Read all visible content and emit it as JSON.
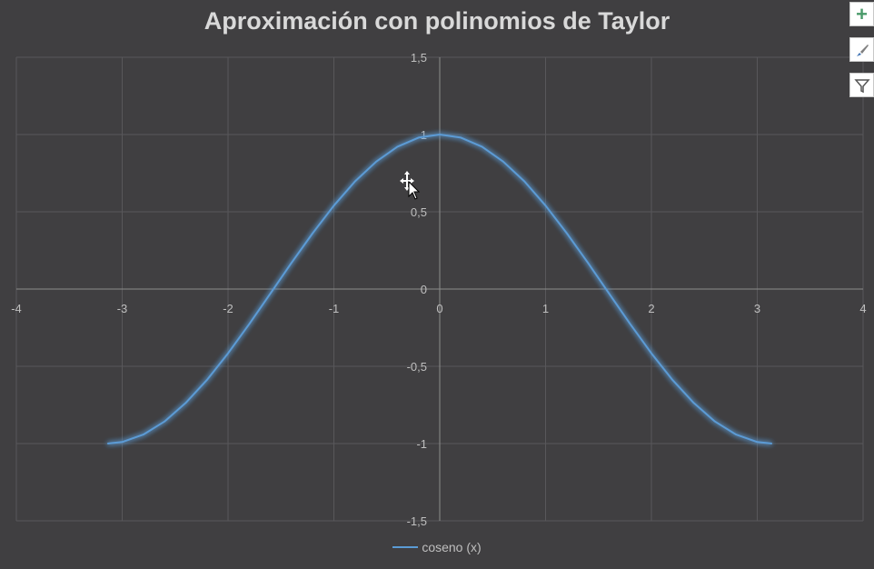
{
  "chart_data": {
    "type": "line",
    "title": "Aproximación con polinomios de Taylor",
    "xlim": [
      -4,
      4
    ],
    "ylim": [
      -1.5,
      1.5
    ],
    "x_ticks": [
      -4,
      -3,
      -2,
      -1,
      0,
      1,
      2,
      3,
      4
    ],
    "y_ticks": [
      -1.5,
      -1,
      -0.5,
      0,
      0.5,
      1,
      1.5
    ],
    "x_tick_labels": [
      "-4",
      "-3",
      "-2",
      "-1",
      "0",
      "1",
      "2",
      "3",
      "4"
    ],
    "y_tick_labels": [
      "-1,5",
      "-1",
      "-0,5",
      "0",
      "0,5",
      "1",
      "1,5"
    ],
    "grid": true,
    "legend_position": "bottom",
    "series": [
      {
        "name": "coseno (x)",
        "color": "#5b9bd5",
        "x": [
          -3.14,
          -3.0,
          -2.8,
          -2.6,
          -2.4,
          -2.2,
          -2.0,
          -1.8,
          -1.6,
          -1.4,
          -1.2,
          -1.0,
          -0.8,
          -0.6,
          -0.4,
          -0.2,
          0.0,
          0.2,
          0.4,
          0.6,
          0.8,
          1.0,
          1.2,
          1.4,
          1.6,
          1.8,
          2.0,
          2.2,
          2.4,
          2.6,
          2.8,
          3.0,
          3.14
        ],
        "y": [
          -1.0,
          -0.99,
          -0.942,
          -0.857,
          -0.737,
          -0.589,
          -0.416,
          -0.227,
          -0.029,
          0.17,
          0.362,
          0.54,
          0.697,
          0.825,
          0.921,
          0.98,
          1.0,
          0.98,
          0.921,
          0.825,
          0.697,
          0.54,
          0.362,
          0.17,
          -0.029,
          -0.227,
          -0.416,
          -0.589,
          -0.737,
          -0.857,
          -0.942,
          -0.99,
          -1.0
        ]
      }
    ]
  },
  "toolbar": {
    "add_icon": "plus-icon",
    "style_icon": "brush-icon",
    "filter_icon": "filter-icon"
  }
}
